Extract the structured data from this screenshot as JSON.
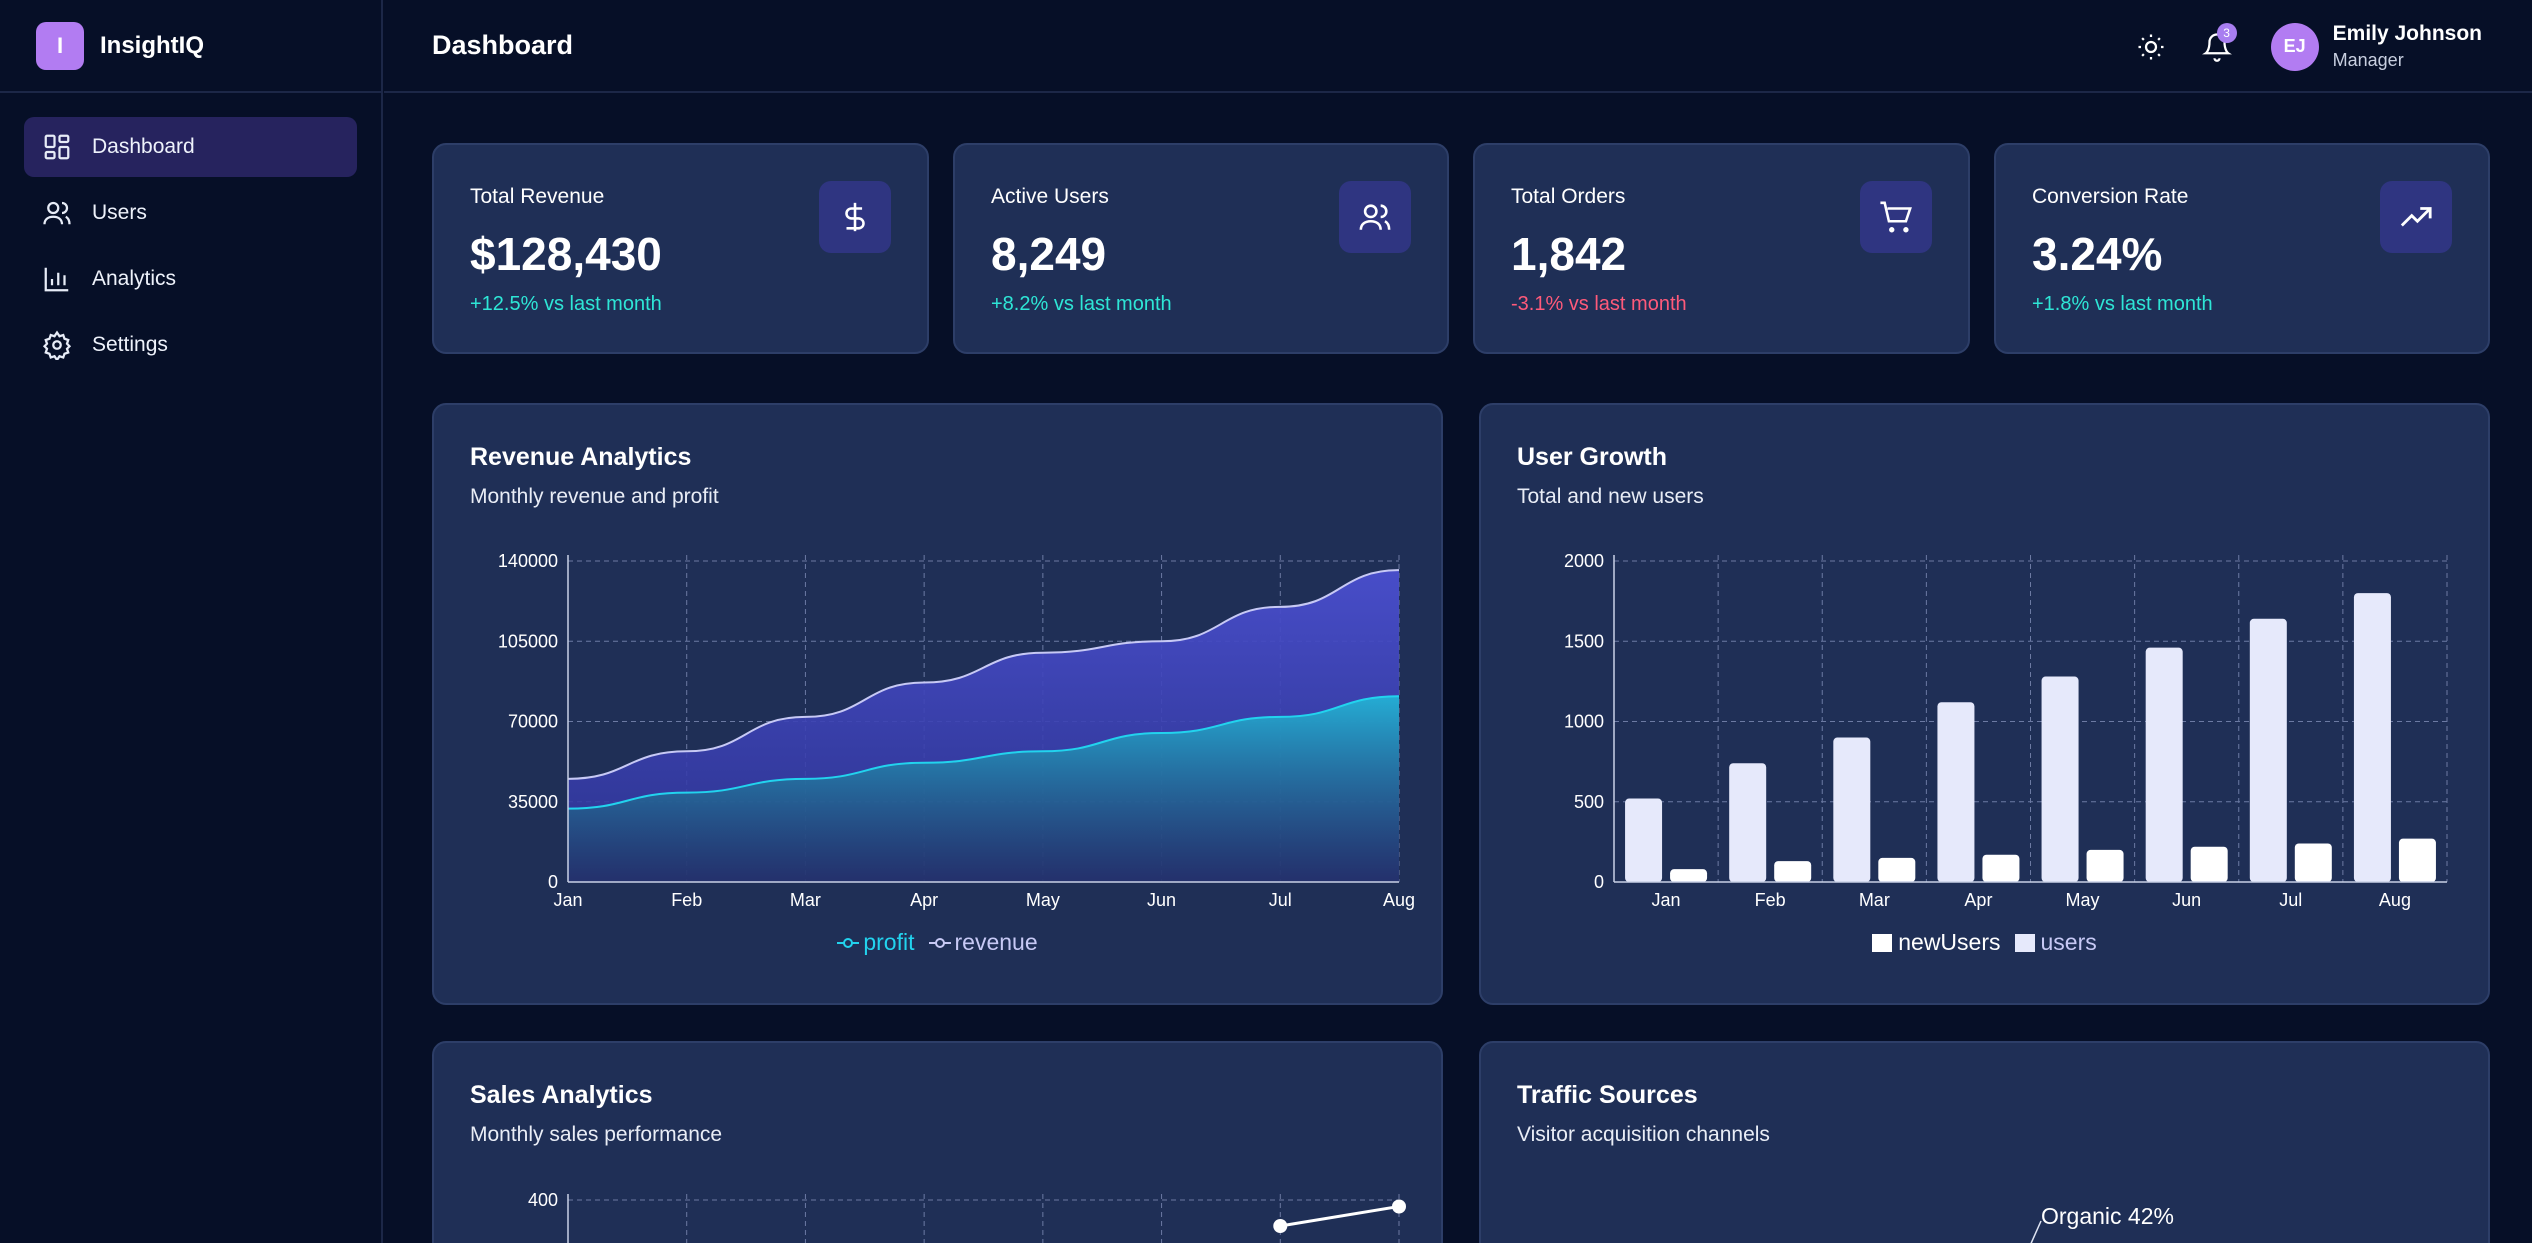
{
  "brand": {
    "logo_letter": "I",
    "name": "InsightIQ"
  },
  "sidebar": {
    "items": [
      {
        "label": "Dashboard",
        "icon": "dashboard-icon",
        "active": true
      },
      {
        "label": "Users",
        "icon": "users-icon",
        "active": false
      },
      {
        "label": "Analytics",
        "icon": "bar-chart-icon",
        "active": false
      },
      {
        "label": "Settings",
        "icon": "gear-icon",
        "active": false
      }
    ]
  },
  "header": {
    "title": "Dashboard",
    "notification_count": "3",
    "user": {
      "initials": "EJ",
      "name": "Emily Johnson",
      "role": "Manager"
    }
  },
  "stats": [
    {
      "label": "Total Revenue",
      "value": "$128,430",
      "change": "+12.5% vs last month",
      "trend": "up",
      "icon": "dollar-icon"
    },
    {
      "label": "Active Users",
      "value": "8,249",
      "change": "+8.2% vs last month",
      "trend": "up",
      "icon": "users-icon"
    },
    {
      "label": "Total Orders",
      "value": "1,842",
      "change": "-3.1% vs last month",
      "trend": "down",
      "icon": "cart-icon"
    },
    {
      "label": "Conversion Rate",
      "value": "3.24%",
      "change": "+1.8% vs last month",
      "trend": "up",
      "icon": "trending-up-icon"
    }
  ],
  "colors": {
    "up": "#2ee6d6",
    "down": "#ff5a7a",
    "accent": "#b27cf2",
    "profit": "#22d3ee",
    "revenue": "#c7c9f5",
    "bars": "#e6e9fb"
  },
  "panels": {
    "revenue": {
      "title": "Revenue Analytics",
      "subtitle": "Monthly revenue and profit"
    },
    "growth": {
      "title": "User Growth",
      "subtitle": "Total and new users"
    },
    "sales": {
      "title": "Sales Analytics",
      "subtitle": "Monthly sales performance"
    },
    "traffic": {
      "title": "Traffic Sources",
      "subtitle": "Visitor acquisition channels"
    }
  },
  "chart_data": [
    {
      "type": "area",
      "categories": [
        "Jan",
        "Feb",
        "Mar",
        "Apr",
        "May",
        "Jun",
        "Jul",
        "Aug"
      ],
      "ylim": [
        0,
        140000
      ],
      "yticks": [
        0,
        35000,
        70000,
        105000,
        140000
      ],
      "series": [
        {
          "name": "profit",
          "values": [
            32000,
            39000,
            45000,
            52000,
            57000,
            65000,
            72000,
            81000
          ]
        },
        {
          "name": "revenue",
          "values": [
            45000,
            57000,
            72000,
            87000,
            100000,
            105000,
            120000,
            136000
          ]
        }
      ],
      "grid": true,
      "legend": "bottom"
    },
    {
      "type": "bar",
      "categories": [
        "Jan",
        "Feb",
        "Mar",
        "Apr",
        "May",
        "Jun",
        "Jul",
        "Aug"
      ],
      "ylim": [
        0,
        2000
      ],
      "yticks": [
        0,
        500,
        1000,
        1500,
        2000
      ],
      "series": [
        {
          "name": "newUsers",
          "values": [
            80,
            130,
            150,
            170,
            200,
            220,
            240,
            270
          ]
        },
        {
          "name": "users",
          "values": [
            520,
            740,
            900,
            1120,
            1280,
            1460,
            1640,
            1800
          ]
        }
      ],
      "grid": true,
      "legend": "bottom"
    },
    {
      "type": "line",
      "yticks_visible": [
        400
      ],
      "points_visible": [
        {
          "x": "Jul",
          "y": 380
        },
        {
          "x": "Aug",
          "y": 395
        }
      ]
    },
    {
      "type": "pie",
      "slices": [
        {
          "label": "Organic 42%",
          "value": 42
        }
      ]
    }
  ]
}
